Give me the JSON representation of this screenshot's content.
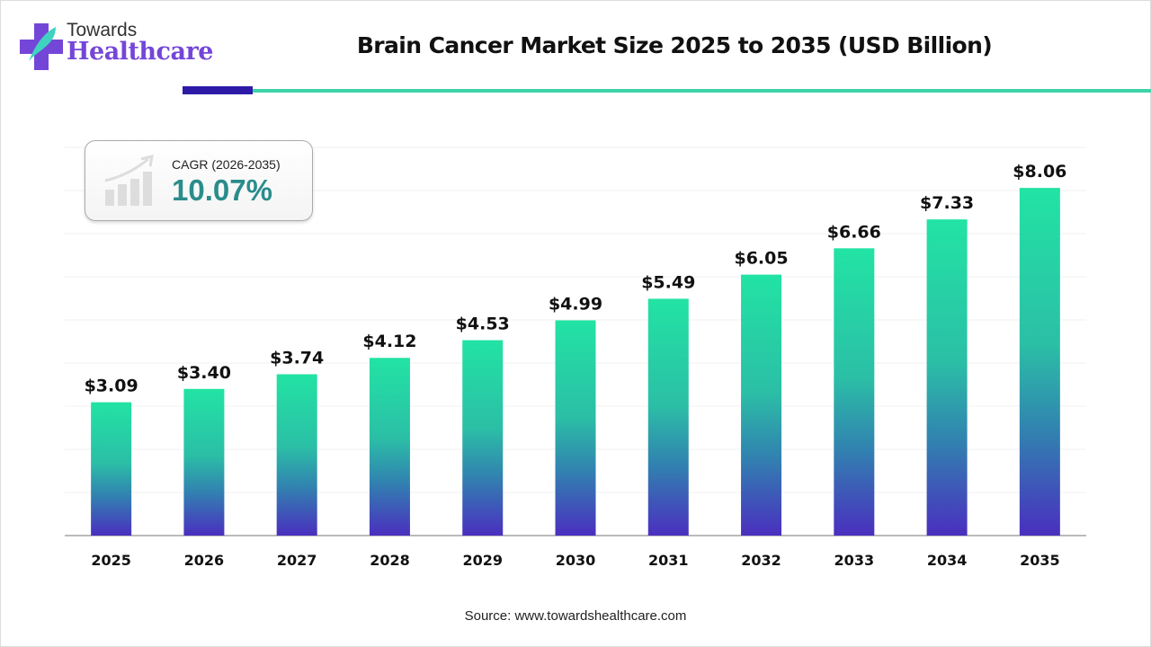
{
  "brand": {
    "line1": "Towards",
    "line2": "Healthcare"
  },
  "cagr": {
    "label": "CAGR (2026-2035)",
    "value": "10.07%"
  },
  "source": "Source: www.towardshealthcare.com",
  "colors": {
    "bar_top": "#22e3a4",
    "bar_bottom": "#4a2fbf",
    "accent_dark": "#2d1ba8",
    "accent_teal": "#3fd3a8",
    "cagr_text": "#2a8c8c"
  },
  "chart_data": {
    "type": "bar",
    "title": "Brain Cancer Market Size 2025 to 2035 (USD Billion)",
    "categories": [
      "2025",
      "2026",
      "2027",
      "2028",
      "2029",
      "2030",
      "2031",
      "2032",
      "2033",
      "2034",
      "2035"
    ],
    "values": [
      3.09,
      3.4,
      3.74,
      4.12,
      4.53,
      4.99,
      5.49,
      6.05,
      6.66,
      7.33,
      8.06
    ],
    "data_labels": [
      "$3.09",
      "$3.40",
      "$3.74",
      "$4.12",
      "$4.53",
      "$4.99",
      "$5.49",
      "$6.05",
      "$6.66",
      "$7.33",
      "$8.06"
    ],
    "xlabel": "",
    "ylabel": "",
    "ylim": [
      0,
      9
    ],
    "grid": true,
    "y_axis_visible": false
  }
}
